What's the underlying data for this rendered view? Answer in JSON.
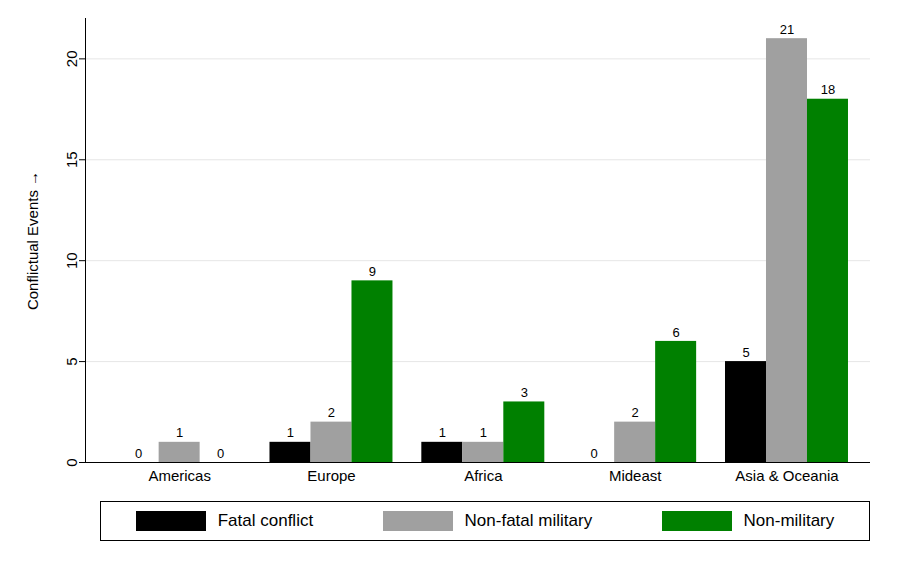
{
  "chart_data": {
    "type": "bar",
    "categories": [
      "Americas",
      "Europe",
      "Africa",
      "Mideast",
      "Asia & Oceania"
    ],
    "series": [
      {
        "name": "Fatal conflict",
        "color": "#000000",
        "values": [
          0,
          1,
          1,
          0,
          5
        ]
      },
      {
        "name": "Non-fatal military",
        "color": "#a0a0a0",
        "values": [
          1,
          2,
          1,
          2,
          21
        ]
      },
      {
        "name": "Non-military",
        "color": "#008000",
        "values": [
          0,
          9,
          3,
          6,
          18
        ]
      }
    ],
    "y_label": "Conflictual Events",
    "ylim": [
      0,
      22
    ],
    "yticks": [
      0,
      5,
      10,
      15,
      20
    ],
    "grid": true,
    "data_labels": true,
    "legend": "bottom"
  }
}
